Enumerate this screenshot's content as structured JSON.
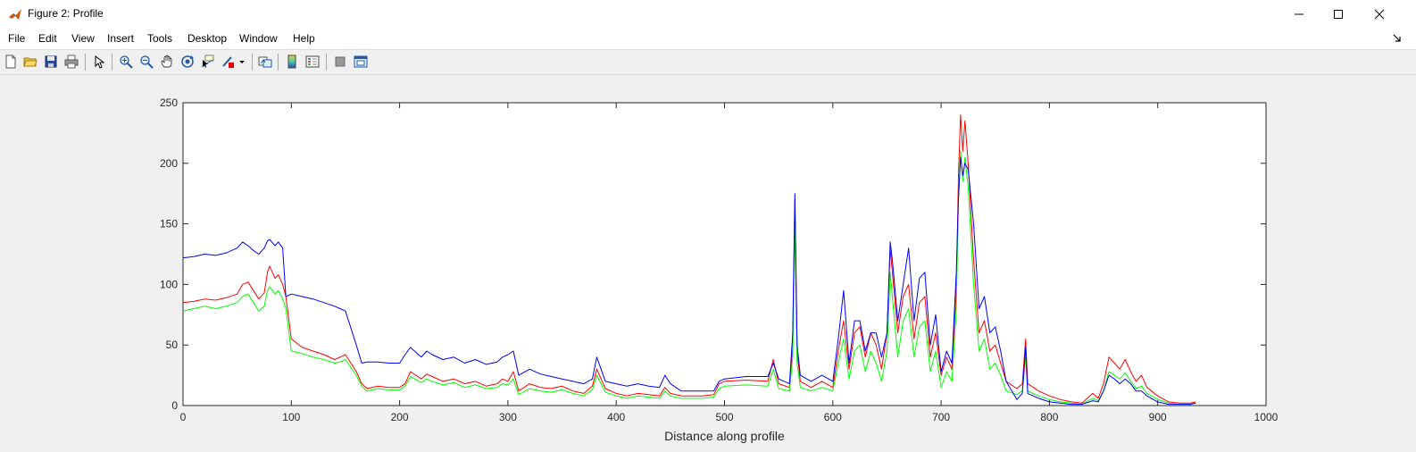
{
  "window": {
    "title": "Figure 2: Profile"
  },
  "menu": [
    {
      "label": "File"
    },
    {
      "label": "Edit"
    },
    {
      "label": "View"
    },
    {
      "label": "Insert"
    },
    {
      "label": "Tools"
    },
    {
      "label": "Desktop"
    },
    {
      "label": "Window"
    },
    {
      "label": "Help"
    }
  ],
  "toolbar": [
    {
      "icon": "new-figure-icon"
    },
    {
      "icon": "open-file-icon"
    },
    {
      "icon": "save-icon"
    },
    {
      "icon": "print-icon"
    },
    {
      "icon": "edit-plot-arrow-icon"
    },
    {
      "icon": "zoom-in-icon"
    },
    {
      "icon": "zoom-out-icon"
    },
    {
      "icon": "pan-hand-icon"
    },
    {
      "icon": "rotate-3d-icon"
    },
    {
      "icon": "data-cursor-icon"
    },
    {
      "icon": "brush-icon"
    },
    {
      "icon": "link-plot-icon"
    },
    {
      "icon": "insert-colorbar-icon"
    },
    {
      "icon": "insert-legend-icon"
    },
    {
      "icon": "hide-plot-tools-icon"
    },
    {
      "icon": "show-plot-tools-icon"
    }
  ],
  "colors": {
    "red": "#ff0000",
    "green": "#00ff00",
    "blue": "#0000ff"
  },
  "chart_data": {
    "type": "line",
    "title": "",
    "xlabel": "Distance along profile",
    "ylabel": "",
    "xlim": [
      0,
      1000
    ],
    "ylim": [
      0,
      250
    ],
    "xticks": [
      0,
      100,
      200,
      300,
      400,
      500,
      600,
      700,
      800,
      900,
      1000
    ],
    "yticks": [
      0,
      50,
      100,
      150,
      200,
      250
    ],
    "grid": false,
    "legend": "none",
    "series": [
      {
        "color": "#ff0000",
        "x": [
          0,
          10,
          20,
          30,
          40,
          50,
          55,
          60,
          65,
          70,
          75,
          78,
          80,
          85,
          88,
          92,
          95,
          100,
          110,
          120,
          130,
          140,
          145,
          150,
          160,
          165,
          170,
          180,
          190,
          200,
          205,
          210,
          220,
          225,
          230,
          240,
          250,
          260,
          270,
          280,
          290,
          295,
          300,
          305,
          310,
          320,
          330,
          340,
          350,
          360,
          370,
          378,
          382,
          390,
          400,
          410,
          420,
          430,
          440,
          445,
          450,
          460,
          480,
          490,
          495,
          500,
          520,
          540,
          545,
          550,
          560,
          563,
          565,
          567,
          570,
          580,
          590,
          600,
          605,
          610,
          615,
          620,
          625,
          630,
          635,
          640,
          645,
          650,
          653,
          655,
          660,
          665,
          670,
          675,
          680,
          685,
          690,
          695,
          700,
          705,
          710,
          714,
          716,
          718,
          720,
          722,
          725,
          730,
          735,
          740,
          745,
          750,
          755,
          760,
          770,
          775,
          778,
          780,
          790,
          800,
          810,
          820,
          830,
          840,
          845,
          850,
          855,
          860,
          865,
          870,
          875,
          880,
          885,
          890,
          900,
          910,
          920,
          930,
          935
        ],
        "y": [
          85,
          86,
          88,
          87,
          89,
          92,
          100,
          102,
          95,
          88,
          93,
          110,
          115,
          105,
          108,
          100,
          90,
          55,
          48,
          45,
          42,
          38,
          40,
          42,
          28,
          18,
          14,
          16,
          15,
          15,
          18,
          28,
          22,
          26,
          24,
          20,
          22,
          18,
          20,
          16,
          18,
          22,
          20,
          28,
          12,
          18,
          15,
          14,
          16,
          12,
          10,
          16,
          30,
          14,
          10,
          8,
          10,
          9,
          8,
          15,
          10,
          8,
          8,
          9,
          18,
          20,
          21,
          20,
          38,
          18,
          15,
          50,
          170,
          45,
          20,
          15,
          20,
          15,
          45,
          70,
          30,
          60,
          65,
          40,
          60,
          50,
          30,
          60,
          130,
          110,
          60,
          90,
          100,
          55,
          85,
          90,
          40,
          60,
          25,
          40,
          30,
          95,
          190,
          240,
          210,
          235,
          200,
          120,
          60,
          70,
          45,
          50,
          35,
          20,
          14,
          18,
          55,
          18,
          12,
          8,
          5,
          3,
          2,
          10,
          6,
          18,
          40,
          35,
          30,
          38,
          28,
          20,
          25,
          15,
          8,
          3,
          2,
          2,
          3
        ]
      },
      {
        "color": "#00ff00",
        "x": [
          0,
          10,
          20,
          30,
          40,
          50,
          55,
          60,
          65,
          70,
          75,
          78,
          80,
          85,
          88,
          92,
          95,
          100,
          110,
          120,
          130,
          140,
          145,
          150,
          160,
          165,
          170,
          180,
          190,
          200,
          205,
          210,
          220,
          225,
          230,
          240,
          250,
          260,
          270,
          280,
          290,
          295,
          300,
          305,
          310,
          320,
          330,
          340,
          350,
          360,
          370,
          378,
          382,
          390,
          400,
          410,
          420,
          430,
          440,
          445,
          450,
          460,
          480,
          490,
          495,
          500,
          520,
          540,
          545,
          550,
          560,
          563,
          565,
          567,
          570,
          580,
          590,
          600,
          605,
          610,
          615,
          620,
          625,
          630,
          635,
          640,
          645,
          650,
          653,
          655,
          660,
          665,
          670,
          675,
          680,
          685,
          690,
          695,
          700,
          705,
          710,
          714,
          716,
          718,
          720,
          722,
          725,
          730,
          735,
          740,
          745,
          750,
          755,
          760,
          770,
          775,
          778,
          780,
          790,
          800,
          810,
          820,
          830,
          840,
          845,
          850,
          855,
          860,
          865,
          870,
          875,
          880,
          885,
          890,
          900,
          910,
          920,
          930,
          935
        ],
        "y": [
          78,
          80,
          82,
          80,
          82,
          85,
          90,
          92,
          85,
          78,
          82,
          95,
          98,
          92,
          95,
          88,
          80,
          45,
          43,
          40,
          38,
          35,
          36,
          38,
          25,
          16,
          12,
          14,
          13,
          13,
          16,
          24,
          19,
          22,
          20,
          17,
          19,
          15,
          17,
          14,
          15,
          18,
          17,
          22,
          9,
          14,
          12,
          11,
          13,
          10,
          8,
          13,
          25,
          11,
          8,
          6,
          8,
          7,
          6,
          12,
          8,
          6,
          6,
          7,
          14,
          16,
          17,
          16,
          30,
          14,
          12,
          40,
          150,
          35,
          15,
          12,
          15,
          12,
          35,
          55,
          22,
          45,
          50,
          28,
          45,
          35,
          20,
          45,
          110,
          90,
          40,
          70,
          80,
          40,
          65,
          70,
          28,
          45,
          15,
          28,
          20,
          80,
          170,
          210,
          185,
          205,
          180,
          100,
          45,
          55,
          30,
          35,
          25,
          12,
          9,
          12,
          40,
          12,
          8,
          5,
          3,
          2,
          1,
          6,
          4,
          12,
          28,
          25,
          22,
          27,
          20,
          14,
          16,
          10,
          5,
          2,
          1,
          1,
          2
        ]
      },
      {
        "color": "#0000ff",
        "x": [
          0,
          10,
          20,
          30,
          40,
          50,
          55,
          60,
          65,
          70,
          75,
          78,
          80,
          85,
          88,
          92,
          95,
          100,
          110,
          120,
          130,
          140,
          145,
          150,
          160,
          165,
          170,
          180,
          190,
          200,
          205,
          210,
          220,
          225,
          230,
          240,
          250,
          260,
          270,
          280,
          290,
          295,
          300,
          305,
          310,
          320,
          330,
          340,
          350,
          360,
          370,
          378,
          382,
          390,
          400,
          410,
          420,
          430,
          440,
          445,
          450,
          460,
          480,
          490,
          495,
          500,
          520,
          540,
          545,
          550,
          560,
          563,
          565,
          567,
          570,
          580,
          590,
          600,
          605,
          610,
          615,
          620,
          625,
          630,
          635,
          640,
          645,
          650,
          653,
          655,
          660,
          665,
          670,
          675,
          680,
          685,
          690,
          695,
          700,
          705,
          710,
          714,
          716,
          718,
          720,
          722,
          725,
          730,
          735,
          740,
          745,
          750,
          755,
          760,
          770,
          775,
          778,
          780,
          790,
          800,
          810,
          820,
          830,
          840,
          845,
          850,
          855,
          860,
          865,
          870,
          875,
          880,
          885,
          890,
          900,
          910,
          920,
          930,
          935
        ],
        "y": [
          122,
          123,
          125,
          124,
          126,
          130,
          135,
          132,
          128,
          125,
          130,
          136,
          137,
          132,
          135,
          130,
          90,
          92,
          90,
          88,
          85,
          82,
          80,
          78,
          50,
          35,
          36,
          36,
          35,
          35,
          42,
          48,
          40,
          45,
          42,
          38,
          40,
          35,
          38,
          34,
          36,
          40,
          42,
          45,
          25,
          30,
          26,
          24,
          22,
          20,
          18,
          22,
          40,
          20,
          18,
          16,
          18,
          16,
          15,
          25,
          18,
          12,
          12,
          12,
          20,
          22,
          24,
          24,
          35,
          22,
          18,
          60,
          175,
          50,
          25,
          20,
          25,
          20,
          55,
          95,
          35,
          70,
          70,
          45,
          60,
          60,
          40,
          60,
          135,
          120,
          70,
          100,
          130,
          70,
          105,
          110,
          50,
          75,
          28,
          45,
          35,
          110,
          170,
          205,
          190,
          200,
          195,
          150,
          80,
          90,
          60,
          65,
          45,
          20,
          5,
          10,
          48,
          10,
          6,
          3,
          2,
          1,
          1,
          4,
          3,
          12,
          25,
          22,
          18,
          22,
          18,
          12,
          12,
          8,
          3,
          1,
          1,
          1,
          2
        ]
      }
    ]
  }
}
